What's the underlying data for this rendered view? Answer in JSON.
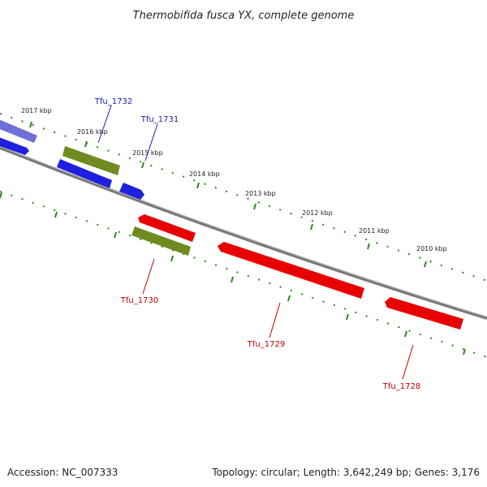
{
  "title": "Thermobifida fusca YX, complete genome",
  "footer": {
    "accession": "Accession: NC_007333",
    "summary": "Topology: circular; Length: 3,642,249 bp; Genes: 3,176"
  },
  "colors": {
    "forward_strand": "#1f1fe0",
    "reverse_strand": "#e80000",
    "rna_feature": "#6f8a20",
    "faded_forward": "#6f6fd8",
    "backbone": "#7a7a7a",
    "tick": "#2a8a1a",
    "forward_label": "#1a1ab0",
    "reverse_label": "#c00000"
  },
  "scale_ticks": [
    {
      "label": "2017 kbp"
    },
    {
      "label": "2016 kbp"
    },
    {
      "label": "2015 kbp"
    },
    {
      "label": "2014 kbp"
    },
    {
      "label": "2013 kbp"
    },
    {
      "label": "2012 kbp"
    },
    {
      "label": "2011 kbp"
    },
    {
      "label": "2010 kbp"
    }
  ],
  "gene_labels": [
    {
      "label": "Tfu_1732",
      "strand": "forward"
    },
    {
      "label": "Tfu_1731",
      "strand": "forward"
    },
    {
      "label": "Tfu_1730",
      "strand": "reverse"
    },
    {
      "label": "Tfu_1729",
      "strand": "reverse"
    },
    {
      "label": "Tfu_1728",
      "strand": "reverse"
    }
  ]
}
